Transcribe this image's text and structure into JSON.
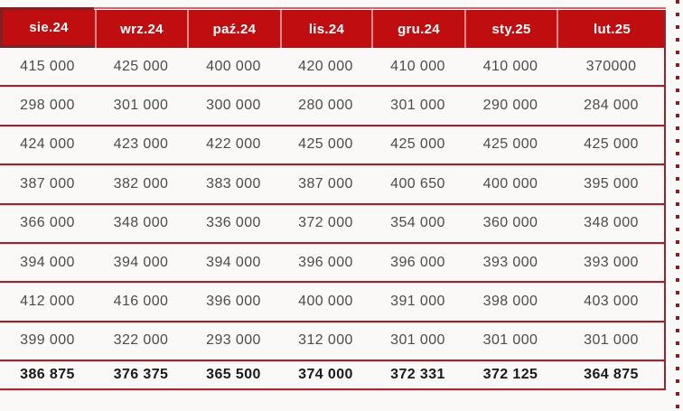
{
  "chart_data": {
    "type": "table",
    "columns": [
      "sie.24",
      "wrz.24",
      "paź.24",
      "lis.24",
      "gru.24",
      "sty.25",
      "lut.25"
    ],
    "rows": [
      [
        "415 000",
        "425 000",
        "400 000",
        "420 000",
        "410 000",
        "410 000",
        "370000"
      ],
      [
        "298 000",
        "301 000",
        "300 000",
        "280 000",
        "301 000",
        "290 000",
        "284 000"
      ],
      [
        "424 000",
        "423 000",
        "422 000",
        "425 000",
        "425 000",
        "425 000",
        "425 000"
      ],
      [
        "387 000",
        "382 000",
        "383 000",
        "387 000",
        "400 650",
        "400 000",
        "395 000"
      ],
      [
        "366 000",
        "348 000",
        "336 000",
        "372 000",
        "354 000",
        "360 000",
        "348 000"
      ],
      [
        "394 000",
        "394 000",
        "394 000",
        "396 000",
        "396 000",
        "393 000",
        "393 000"
      ],
      [
        "412 000",
        "416 000",
        "396 000",
        "400 000",
        "391 000",
        "398 000",
        "403 000"
      ],
      [
        "399 000",
        "322 000",
        "293 000",
        "312 000",
        "301 000",
        "301 000",
        "301 000"
      ]
    ],
    "summary_row": [
      "386 875",
      "376 375",
      "365 500",
      "374 000",
      "372 331",
      "372 125",
      "364 875"
    ],
    "layout_hints": {
      "grid": "horizontal row separators only, no inner column lines in body",
      "legend_position": "none"
    }
  },
  "colors": {
    "header_bg": "#c00d10",
    "header_text": "#ffffff",
    "row_separator": "#8e2a33",
    "dark_accent": "#7d2127",
    "light_accent": "#cb6a70",
    "body_text": "#4c4c4c",
    "summary_text": "#1a1a1a",
    "background": "#fbf8f8"
  }
}
